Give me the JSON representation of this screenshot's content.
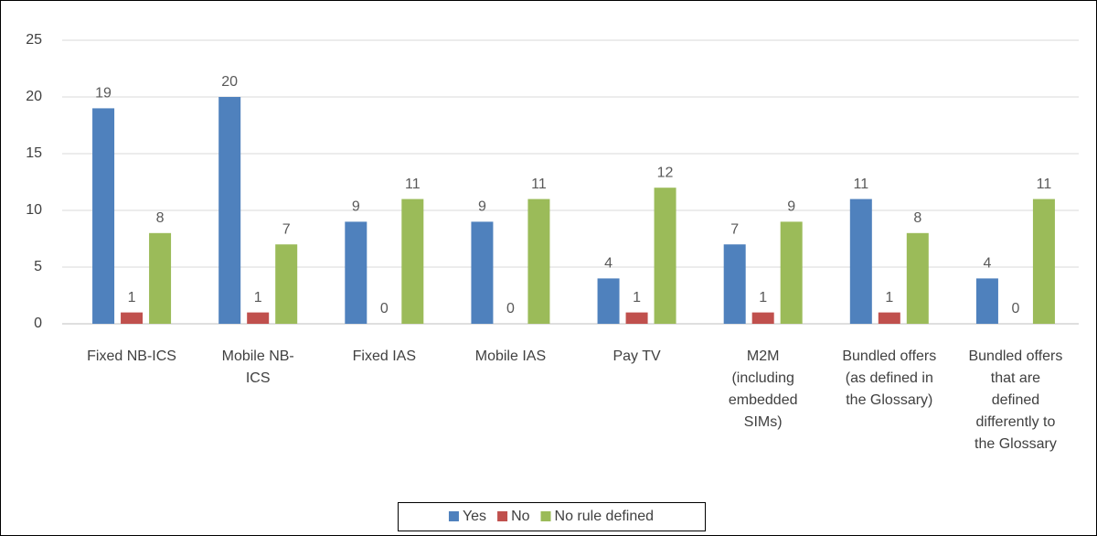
{
  "chart_data": {
    "type": "bar",
    "categories": [
      "Fixed NB-ICS",
      "Mobile NB-ICS",
      "Fixed IAS",
      "Mobile IAS",
      "Pay TV",
      "M2M (including embedded SIMs)",
      "Bundled offers (as defined in the Glossary)",
      "Bundled offers that are defined differently to the Glossary"
    ],
    "series": [
      {
        "name": "Yes",
        "color": "#4f81bd",
        "values": [
          19,
          20,
          9,
          9,
          4,
          7,
          11,
          4
        ]
      },
      {
        "name": "No",
        "color": "#c0504d",
        "values": [
          1,
          1,
          0,
          0,
          1,
          1,
          1,
          0
        ]
      },
      {
        "name": "No rule defined",
        "color": "#9bbb59",
        "values": [
          8,
          7,
          11,
          11,
          12,
          9,
          8,
          11
        ]
      }
    ],
    "ylim": [
      0,
      25
    ],
    "yticks": [
      0,
      5,
      10,
      15,
      20,
      25
    ],
    "grid": true,
    "legend": "bottom"
  }
}
